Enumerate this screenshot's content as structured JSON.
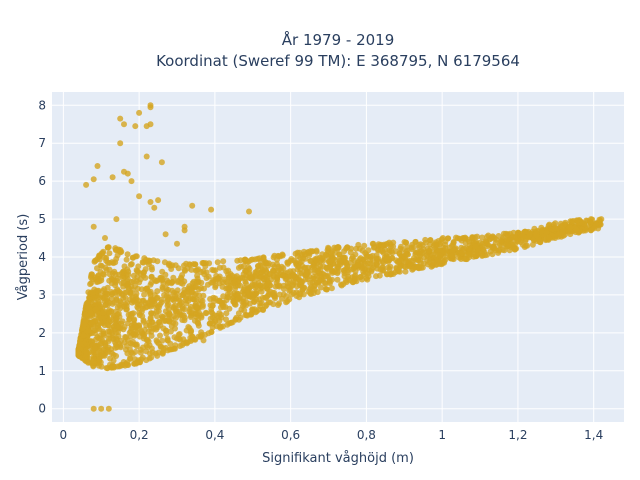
{
  "chart_data": {
    "type": "scatter",
    "title_line1": "År 1979 - 2019",
    "title_line2": "Koordinat (Sweref 99 TM): E 368795, N 6179564",
    "xlabel": "Signifikant våghöjd (m)",
    "ylabel": "Vågperiod (s)",
    "xlim": [
      -0.03,
      1.48
    ],
    "ylim": [
      -0.35,
      8.35
    ],
    "x_ticks": [
      0,
      0.2,
      0.4,
      0.6,
      0.8,
      1,
      1.2,
      1.4
    ],
    "x_tick_labels": [
      "0",
      "0,2",
      "0,4",
      "0,6",
      "0,8",
      "1",
      "1,2",
      "1,4"
    ],
    "y_ticks": [
      0,
      1,
      2,
      3,
      4,
      5,
      6,
      7,
      8
    ],
    "y_tick_labels": [
      "0",
      "1",
      "2",
      "3",
      "4",
      "5",
      "6",
      "7",
      "8"
    ],
    "grid": true,
    "marker_color": "#d4a520",
    "plot_background": "#e5ecf6",
    "series": [
      {
        "outliers": [
          [
            0.08,
            0.0
          ],
          [
            0.1,
            0.0
          ],
          [
            0.12,
            0.0
          ],
          [
            0.06,
            5.9
          ],
          [
            0.08,
            6.05
          ],
          [
            0.09,
            6.4
          ],
          [
            0.13,
            6.1
          ],
          [
            0.17,
            6.2
          ],
          [
            0.18,
            6.0
          ],
          [
            0.16,
            6.25
          ],
          [
            0.15,
            7.0
          ],
          [
            0.16,
            7.5
          ],
          [
            0.15,
            7.65
          ],
          [
            0.2,
            7.8
          ],
          [
            0.19,
            7.45
          ],
          [
            0.22,
            7.45
          ],
          [
            0.23,
            7.5
          ],
          [
            0.23,
            8.0
          ],
          [
            0.23,
            7.95
          ],
          [
            0.22,
            6.65
          ],
          [
            0.26,
            6.5
          ],
          [
            0.2,
            5.6
          ],
          [
            0.23,
            5.45
          ],
          [
            0.24,
            5.3
          ],
          [
            0.25,
            5.5
          ],
          [
            0.34,
            5.35
          ],
          [
            0.39,
            5.25
          ],
          [
            0.49,
            5.2
          ],
          [
            0.32,
            4.8
          ],
          [
            0.32,
            4.7
          ],
          [
            0.27,
            4.6
          ],
          [
            0.3,
            4.35
          ],
          [
            0.08,
            4.8
          ],
          [
            0.11,
            4.5
          ],
          [
            0.14,
            5.0
          ],
          [
            0.3,
            1.85
          ],
          [
            0.34,
            1.9
          ],
          [
            0.37,
            1.8
          ]
        ],
        "upper_envelope": [
          [
            0.04,
            1.55
          ],
          [
            0.08,
            3.9
          ],
          [
            0.12,
            4.3
          ],
          [
            0.2,
            4.0
          ],
          [
            0.3,
            3.8
          ],
          [
            0.4,
            3.9
          ],
          [
            0.5,
            3.95
          ],
          [
            0.6,
            4.1
          ],
          [
            0.7,
            4.25
          ],
          [
            0.8,
            4.35
          ],
          [
            0.9,
            4.4
          ],
          [
            1.0,
            4.5
          ],
          [
            1.1,
            4.55
          ],
          [
            1.2,
            4.65
          ],
          [
            1.3,
            4.9
          ],
          [
            1.42,
            5.05
          ]
        ],
        "lower_envelope": [
          [
            0.04,
            1.4
          ],
          [
            0.08,
            1.1
          ],
          [
            0.12,
            1.05
          ],
          [
            0.2,
            1.2
          ],
          [
            0.3,
            1.6
          ],
          [
            0.4,
            2.05
          ],
          [
            0.5,
            2.5
          ],
          [
            0.6,
            2.85
          ],
          [
            0.7,
            3.15
          ],
          [
            0.8,
            3.4
          ],
          [
            0.9,
            3.6
          ],
          [
            1.0,
            3.8
          ],
          [
            1.1,
            4.0
          ],
          [
            1.2,
            4.2
          ],
          [
            1.3,
            4.5
          ],
          [
            1.42,
            4.75
          ]
        ]
      }
    ]
  }
}
